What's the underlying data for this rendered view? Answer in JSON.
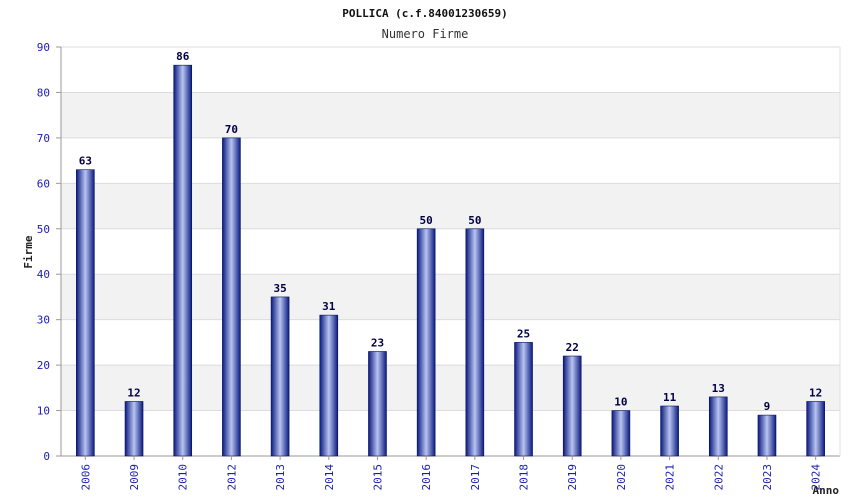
{
  "chart_data": {
    "type": "bar",
    "title": "POLLICA (c.f.84001230659)",
    "subtitle": "Numero Firme",
    "ylabel": "Firme",
    "xlabel": "Anno",
    "categories": [
      "2006",
      "2009",
      "2010",
      "2012",
      "2013",
      "2014",
      "2015",
      "2016",
      "2017",
      "2018",
      "2019",
      "2020",
      "2021",
      "2022",
      "2023",
      "2024"
    ],
    "values": [
      63,
      12,
      86,
      70,
      35,
      31,
      23,
      50,
      50,
      25,
      22,
      10,
      11,
      13,
      9,
      12
    ],
    "ylim": [
      0,
      90
    ],
    "yticks": [
      0,
      10,
      20,
      30,
      40,
      50,
      60,
      70,
      80,
      90
    ],
    "grid": true,
    "data_labels": true,
    "legend": "none",
    "colors": {
      "bar_dark": "#0a1a80",
      "bar_light": "#b8c4f0",
      "band": "#f2f2f2",
      "tick_text": "#1b1bb3",
      "label_text": "#000044"
    }
  }
}
